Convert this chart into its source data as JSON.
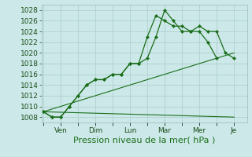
{
  "background_color": "#cce8e8",
  "grid_color": "#aacccc",
  "line_color": "#1a6e1a",
  "marker_color": "#1a6e1a",
  "xlabel": "Pression niveau de la mer( hPa )",
  "xlabel_fontsize": 8,
  "ylim": [
    1007.0,
    1029.0
  ],
  "yticks": [
    1008,
    1010,
    1012,
    1014,
    1016,
    1018,
    1020,
    1022,
    1024,
    1026,
    1028
  ],
  "tick_fontsize": 6.5,
  "xtick_positions": [
    2,
    6,
    10,
    14,
    18,
    22
  ],
  "xtick_labels": [
    "Ven",
    "Dim",
    "Lun",
    "Mar",
    "Mer",
    "Je"
  ],
  "xlim": [
    -0.2,
    23.5
  ],
  "series1_x": [
    0,
    1,
    2,
    3,
    4,
    5,
    6,
    7,
    8,
    9,
    10,
    11,
    12,
    13,
    14,
    15,
    16,
    17,
    18,
    19,
    20,
    21,
    22
  ],
  "series1_y": [
    1009,
    1008,
    1008,
    1010,
    1012,
    1014,
    1015,
    1015,
    1016,
    1016,
    1018,
    1018,
    1019,
    1023,
    1028,
    1026,
    1024,
    1024,
    1025,
    1024,
    1024,
    1020,
    1019
  ],
  "series2_x": [
    0,
    1,
    2,
    3,
    4,
    5,
    6,
    7,
    8,
    9,
    10,
    11,
    12,
    13,
    14,
    15,
    16,
    17,
    18,
    19,
    20
  ],
  "series2_y": [
    1009,
    1008,
    1008,
    1010,
    1012,
    1014,
    1015,
    1015,
    1016,
    1016,
    1018,
    1018,
    1023,
    1027,
    1026,
    1025,
    1025,
    1024,
    1024,
    1022,
    1019
  ],
  "series3_x": [
    0,
    22
  ],
  "series3_y": [
    1009,
    1020
  ],
  "series4_x": [
    0,
    22
  ],
  "series4_y": [
    1009,
    1008
  ]
}
